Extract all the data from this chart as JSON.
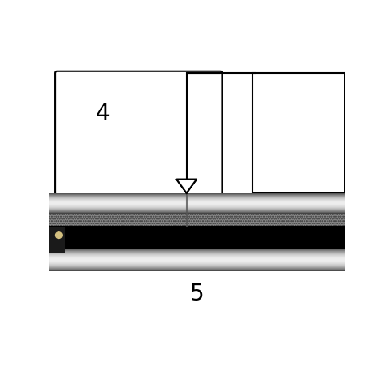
{
  "bg_color": "#ffffff",
  "font_size": 20,
  "pipe_color_dark": [
    0.25,
    0.25,
    0.25
  ],
  "pipe_color_bright": [
    0.92,
    0.92,
    0.92
  ],
  "pipe_color_mid": [
    0.55,
    0.55,
    0.55
  ]
}
